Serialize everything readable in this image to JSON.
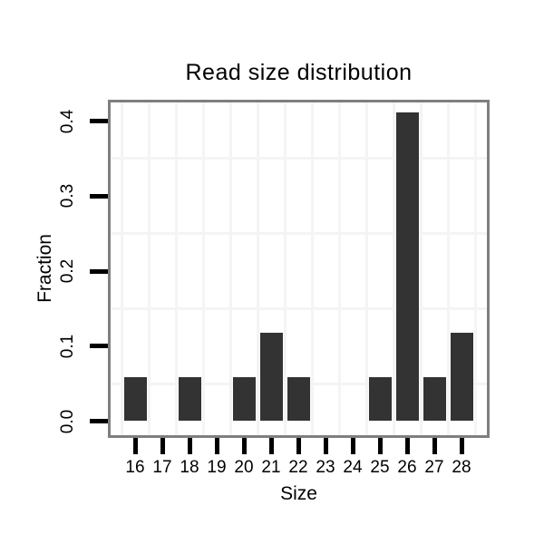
{
  "chart_data": {
    "type": "bar",
    "title": "Read size distribution",
    "xlabel": "Size",
    "ylabel": "Fraction",
    "categories": [
      16,
      17,
      18,
      19,
      20,
      21,
      22,
      23,
      24,
      25,
      26,
      27,
      28
    ],
    "values": [
      0.0588,
      0,
      0.0588,
      0,
      0.0588,
      0.1176,
      0.0588,
      0,
      0,
      0.0588,
      0.4118,
      0.0588,
      0.1176
    ],
    "ytick_labels": [
      "0.0",
      "0.1",
      "0.2",
      "0.3",
      "0.4"
    ],
    "yticks": [
      0.0,
      0.1,
      0.2,
      0.3,
      0.4
    ],
    "ylim": [
      0,
      0.425
    ],
    "minor_hgrid_levels": [
      0.05,
      0.15,
      0.25,
      0.35
    ],
    "grid": "faint minor gridlines, vertical lines at category boundaries",
    "legend": "none",
    "bar_color": "#333333",
    "panel_border_color": "#7f7f7f",
    "grid_color": "#f4f4f4",
    "tick_color": "#000000",
    "background_color": "#ffffff"
  }
}
